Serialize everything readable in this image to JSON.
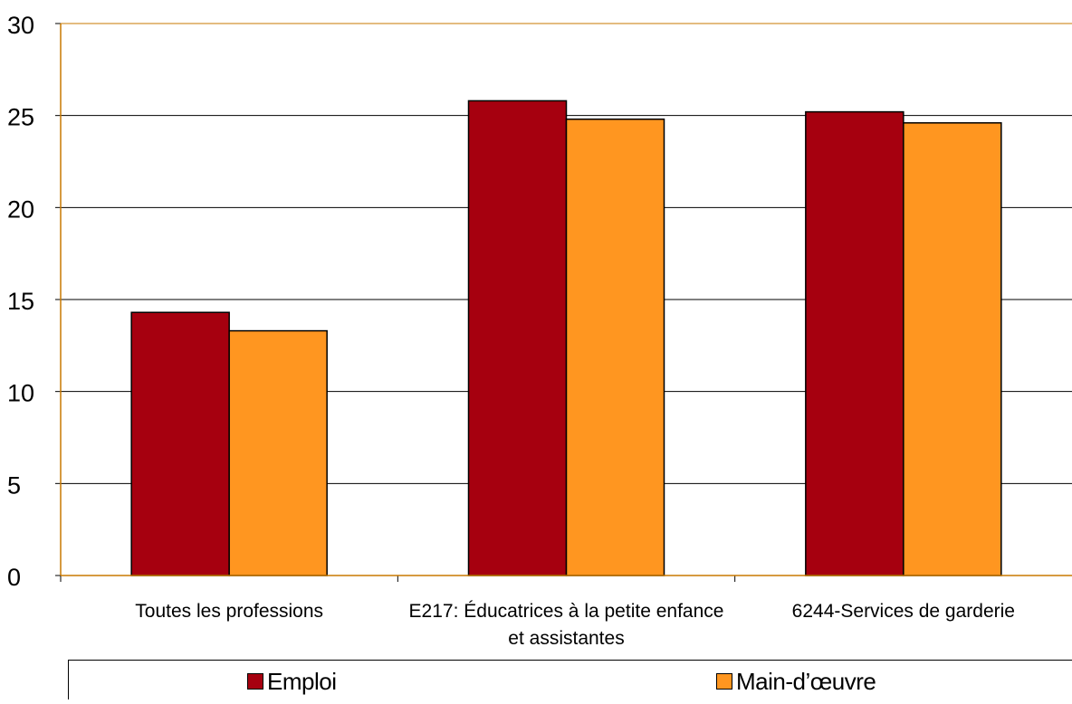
{
  "chart_data": {
    "type": "bar",
    "categories": [
      [
        "Toutes les professions"
      ],
      [
        "E217: Éducatrices à la petite enfance",
        "et assistantes"
      ],
      [
        "6244-Services de garderie"
      ]
    ],
    "series": [
      {
        "name": "Emploi",
        "values": [
          14.3,
          25.8,
          25.2
        ],
        "color": "#A6000F"
      },
      {
        "name": "Main-d’œuvre",
        "values": [
          13.3,
          24.8,
          24.6
        ],
        "color": "#FF9620"
      }
    ],
    "y_ticks": [
      "0",
      "5",
      "10",
      "15",
      "20",
      "25",
      "30"
    ],
    "ylim": [
      0,
      30
    ],
    "grid": true,
    "legend_position": "bottom",
    "axis_color": "#C87800"
  }
}
